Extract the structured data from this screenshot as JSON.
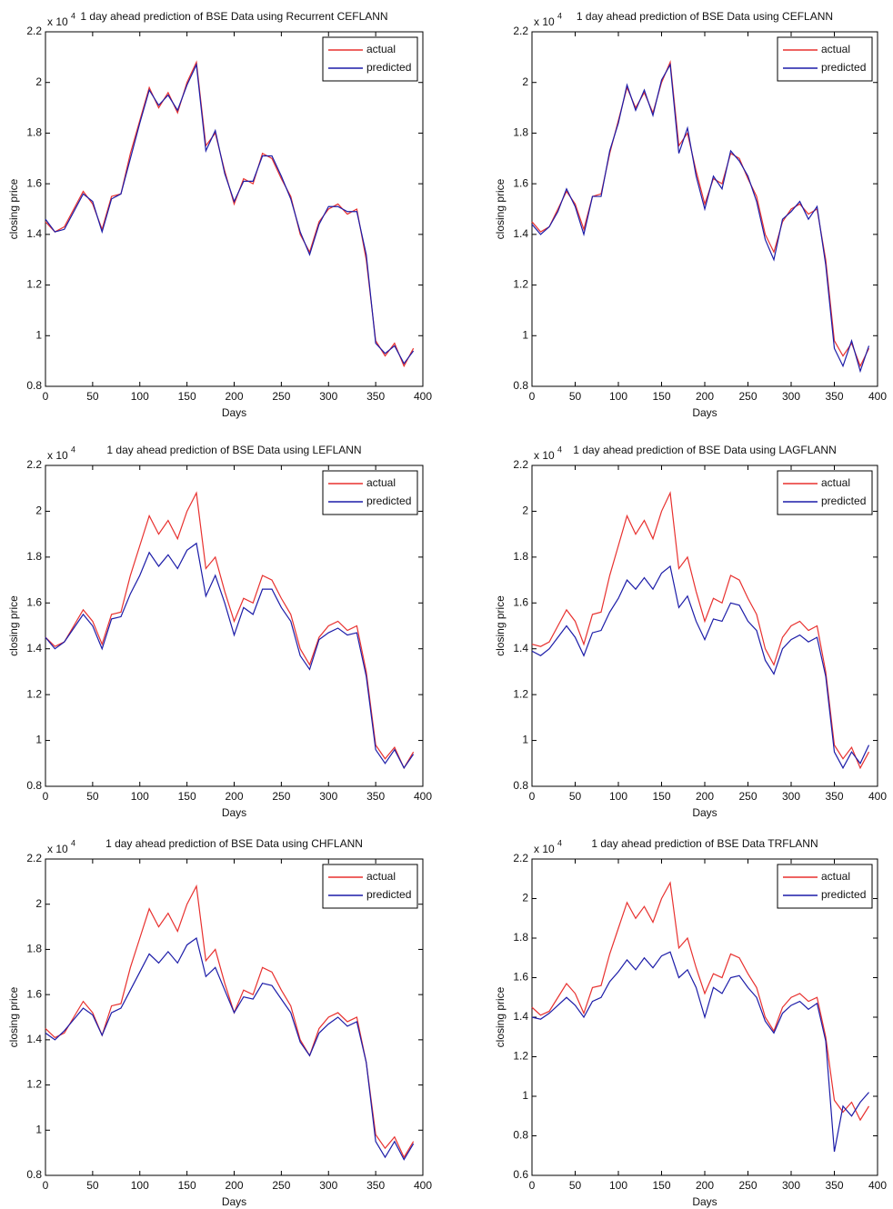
{
  "chart_data": [
    {
      "type": "line",
      "title": "1 day ahead prediction of BSE  Data using  Recurrent CEFLANN",
      "x_label": "Days",
      "y_label": "closing price",
      "y_multiplier": "x 10",
      "y_multiplier_exponent": "4",
      "legend": "northeast",
      "x": [
        0,
        10,
        20,
        30,
        40,
        50,
        60,
        70,
        80,
        90,
        100,
        110,
        120,
        130,
        140,
        150,
        160,
        170,
        180,
        190,
        200,
        210,
        220,
        230,
        240,
        250,
        260,
        270,
        280,
        290,
        300,
        310,
        320,
        330,
        340,
        350,
        360,
        370,
        380,
        390
      ],
      "xlim": [
        0,
        400
      ],
      "xticks": [
        0,
        50,
        100,
        150,
        200,
        250,
        300,
        350,
        400
      ],
      "ylim": [
        0.8,
        2.2
      ],
      "yticks": [
        0.8,
        1,
        1.2,
        1.4,
        1.6,
        1.8,
        2,
        2.2
      ],
      "series": [
        {
          "name": "actual",
          "color": "#e8312f",
          "values": [
            1.45,
            1.41,
            1.43,
            1.5,
            1.57,
            1.52,
            1.42,
            1.55,
            1.56,
            1.72,
            1.85,
            1.98,
            1.9,
            1.96,
            1.88,
            2.0,
            2.08,
            1.75,
            1.8,
            1.65,
            1.52,
            1.62,
            1.6,
            1.72,
            1.7,
            1.62,
            1.55,
            1.4,
            1.33,
            1.45,
            1.5,
            1.52,
            1.48,
            1.5,
            1.3,
            0.98,
            0.92,
            0.97,
            0.88,
            0.95
          ]
        },
        {
          "name": "predicted",
          "color": "#1c1ca8",
          "values": [
            1.46,
            1.41,
            1.42,
            1.49,
            1.56,
            1.53,
            1.41,
            1.54,
            1.56,
            1.7,
            1.84,
            1.97,
            1.91,
            1.95,
            1.89,
            1.99,
            2.07,
            1.73,
            1.81,
            1.64,
            1.53,
            1.61,
            1.61,
            1.71,
            1.71,
            1.63,
            1.54,
            1.41,
            1.32,
            1.44,
            1.51,
            1.51,
            1.49,
            1.49,
            1.32,
            0.97,
            0.93,
            0.96,
            0.89,
            0.94
          ]
        }
      ]
    },
    {
      "type": "line",
      "title": "1 day ahead prediction of BSE  Data using  CEFLANN",
      "x_label": "Days",
      "y_label": "closing price",
      "y_multiplier": "x 10",
      "y_multiplier_exponent": "4",
      "legend": "northeast",
      "x": [
        0,
        10,
        20,
        30,
        40,
        50,
        60,
        70,
        80,
        90,
        100,
        110,
        120,
        130,
        140,
        150,
        160,
        170,
        180,
        190,
        200,
        210,
        220,
        230,
        240,
        250,
        260,
        270,
        280,
        290,
        300,
        310,
        320,
        330,
        340,
        350,
        360,
        370,
        380,
        390
      ],
      "xlim": [
        0,
        400
      ],
      "xticks": [
        0,
        50,
        100,
        150,
        200,
        250,
        300,
        350,
        400
      ],
      "ylim": [
        0.8,
        2.2
      ],
      "yticks": [
        0.8,
        1,
        1.2,
        1.4,
        1.6,
        1.8,
        2,
        2.2
      ],
      "series": [
        {
          "name": "actual",
          "color": "#e8312f",
          "values": [
            1.45,
            1.41,
            1.43,
            1.5,
            1.57,
            1.52,
            1.42,
            1.55,
            1.56,
            1.72,
            1.85,
            1.98,
            1.9,
            1.96,
            1.88,
            2.0,
            2.08,
            1.75,
            1.8,
            1.65,
            1.52,
            1.62,
            1.6,
            1.72,
            1.7,
            1.62,
            1.55,
            1.4,
            1.33,
            1.45,
            1.5,
            1.52,
            1.48,
            1.5,
            1.3,
            0.98,
            0.92,
            0.97,
            0.88,
            0.95
          ]
        },
        {
          "name": "predicted",
          "color": "#1c1ca8",
          "values": [
            1.44,
            1.4,
            1.43,
            1.49,
            1.58,
            1.51,
            1.4,
            1.55,
            1.55,
            1.73,
            1.84,
            1.99,
            1.89,
            1.97,
            1.87,
            2.01,
            2.07,
            1.72,
            1.82,
            1.63,
            1.5,
            1.63,
            1.58,
            1.73,
            1.69,
            1.63,
            1.53,
            1.38,
            1.3,
            1.46,
            1.49,
            1.53,
            1.46,
            1.51,
            1.28,
            0.95,
            0.88,
            0.98,
            0.86,
            0.96
          ]
        }
      ]
    },
    {
      "type": "line",
      "title": "1 day ahead prediction of BSE  Data using  LEFLANN",
      "x_label": "Days",
      "y_label": "closing price",
      "y_multiplier": "x 10",
      "y_multiplier_exponent": "4",
      "legend": "northeast",
      "x": [
        0,
        10,
        20,
        30,
        40,
        50,
        60,
        70,
        80,
        90,
        100,
        110,
        120,
        130,
        140,
        150,
        160,
        170,
        180,
        190,
        200,
        210,
        220,
        230,
        240,
        250,
        260,
        270,
        280,
        290,
        300,
        310,
        320,
        330,
        340,
        350,
        360,
        370,
        380,
        390
      ],
      "xlim": [
        0,
        400
      ],
      "xticks": [
        0,
        50,
        100,
        150,
        200,
        250,
        300,
        350,
        400
      ],
      "ylim": [
        0.8,
        2.2
      ],
      "yticks": [
        0.8,
        1,
        1.2,
        1.4,
        1.6,
        1.8,
        2,
        2.2
      ],
      "series": [
        {
          "name": "actual",
          "color": "#e8312f",
          "values": [
            1.45,
            1.41,
            1.43,
            1.5,
            1.57,
            1.52,
            1.42,
            1.55,
            1.56,
            1.72,
            1.85,
            1.98,
            1.9,
            1.96,
            1.88,
            2.0,
            2.08,
            1.75,
            1.8,
            1.65,
            1.52,
            1.62,
            1.6,
            1.72,
            1.7,
            1.62,
            1.55,
            1.4,
            1.33,
            1.45,
            1.5,
            1.52,
            1.48,
            1.5,
            1.3,
            0.98,
            0.92,
            0.97,
            0.88,
            0.95
          ]
        },
        {
          "name": "predicted",
          "color": "#1c1ca8",
          "values": [
            1.45,
            1.4,
            1.43,
            1.49,
            1.55,
            1.5,
            1.4,
            1.53,
            1.54,
            1.64,
            1.72,
            1.82,
            1.76,
            1.81,
            1.75,
            1.83,
            1.86,
            1.63,
            1.72,
            1.6,
            1.46,
            1.58,
            1.55,
            1.66,
            1.66,
            1.58,
            1.52,
            1.37,
            1.31,
            1.44,
            1.47,
            1.49,
            1.46,
            1.47,
            1.28,
            0.96,
            0.9,
            0.96,
            0.88,
            0.94
          ]
        }
      ]
    },
    {
      "type": "line",
      "title": "1 day ahead prediction of BSE  Data using  LAGFLANN",
      "x_label": "Days",
      "y_label": "closing price",
      "y_multiplier": "x 10",
      "y_multiplier_exponent": "4",
      "legend": "northeast",
      "x": [
        0,
        10,
        20,
        30,
        40,
        50,
        60,
        70,
        80,
        90,
        100,
        110,
        120,
        130,
        140,
        150,
        160,
        170,
        180,
        190,
        200,
        210,
        220,
        230,
        240,
        250,
        260,
        270,
        280,
        290,
        300,
        310,
        320,
        330,
        340,
        350,
        360,
        370,
        380,
        390
      ],
      "xlim": [
        0,
        400
      ],
      "xticks": [
        0,
        50,
        100,
        150,
        200,
        250,
        300,
        350,
        400
      ],
      "ylim": [
        0.8,
        2.2
      ],
      "yticks": [
        0.8,
        1,
        1.2,
        1.4,
        1.6,
        1.8,
        2,
        2.2
      ],
      "series": [
        {
          "name": "actual",
          "color": "#e8312f",
          "values": [
            1.42,
            1.41,
            1.43,
            1.5,
            1.57,
            1.52,
            1.42,
            1.55,
            1.56,
            1.72,
            1.85,
            1.98,
            1.9,
            1.96,
            1.88,
            2.0,
            2.08,
            1.75,
            1.8,
            1.65,
            1.52,
            1.62,
            1.6,
            1.72,
            1.7,
            1.62,
            1.55,
            1.4,
            1.33,
            1.45,
            1.5,
            1.52,
            1.48,
            1.5,
            1.3,
            0.98,
            0.92,
            0.97,
            0.88,
            0.95
          ]
        },
        {
          "name": "predicted",
          "color": "#1c1ca8",
          "values": [
            1.39,
            1.37,
            1.4,
            1.45,
            1.5,
            1.45,
            1.37,
            1.47,
            1.48,
            1.56,
            1.62,
            1.7,
            1.66,
            1.71,
            1.66,
            1.73,
            1.76,
            1.58,
            1.63,
            1.52,
            1.44,
            1.53,
            1.52,
            1.6,
            1.59,
            1.52,
            1.48,
            1.35,
            1.29,
            1.4,
            1.44,
            1.46,
            1.43,
            1.45,
            1.28,
            0.95,
            0.88,
            0.95,
            0.9,
            0.98
          ]
        }
      ]
    },
    {
      "type": "line",
      "title": "1 day ahead prediction of BSE  Data using  CHFLANN",
      "x_label": "Days",
      "y_label": "closing price",
      "y_multiplier": "x 10",
      "y_multiplier_exponent": "4",
      "legend": "northeast",
      "x": [
        0,
        10,
        20,
        30,
        40,
        50,
        60,
        70,
        80,
        90,
        100,
        110,
        120,
        130,
        140,
        150,
        160,
        170,
        180,
        190,
        200,
        210,
        220,
        230,
        240,
        250,
        260,
        270,
        280,
        290,
        300,
        310,
        320,
        330,
        340,
        350,
        360,
        370,
        380,
        390
      ],
      "xlim": [
        0,
        400
      ],
      "xticks": [
        0,
        50,
        100,
        150,
        200,
        250,
        300,
        350,
        400
      ],
      "ylim": [
        0.8,
        2.2
      ],
      "yticks": [
        0.8,
        1,
        1.2,
        1.4,
        1.6,
        1.8,
        2,
        2.2
      ],
      "series": [
        {
          "name": "actual",
          "color": "#e8312f",
          "values": [
            1.45,
            1.41,
            1.43,
            1.5,
            1.57,
            1.52,
            1.42,
            1.55,
            1.56,
            1.72,
            1.85,
            1.98,
            1.9,
            1.96,
            1.88,
            2.0,
            2.08,
            1.75,
            1.8,
            1.65,
            1.52,
            1.62,
            1.6,
            1.72,
            1.7,
            1.62,
            1.55,
            1.4,
            1.33,
            1.45,
            1.5,
            1.52,
            1.48,
            1.5,
            1.3,
            0.98,
            0.92,
            0.97,
            0.88,
            0.95
          ]
        },
        {
          "name": "predicted",
          "color": "#1c1ca8",
          "values": [
            1.43,
            1.4,
            1.44,
            1.49,
            1.54,
            1.51,
            1.42,
            1.52,
            1.54,
            1.62,
            1.7,
            1.78,
            1.74,
            1.79,
            1.74,
            1.82,
            1.85,
            1.68,
            1.72,
            1.62,
            1.52,
            1.59,
            1.58,
            1.65,
            1.64,
            1.58,
            1.52,
            1.39,
            1.33,
            1.43,
            1.47,
            1.5,
            1.46,
            1.48,
            1.3,
            0.95,
            0.88,
            0.95,
            0.87,
            0.94
          ]
        }
      ]
    },
    {
      "type": "line",
      "title": "1 day ahead prediction of  BSE  Data  TRFLANN",
      "x_label": "Days",
      "y_label": "closing price",
      "y_multiplier": "x 10",
      "y_multiplier_exponent": "4",
      "legend": "northeast",
      "x": [
        0,
        10,
        20,
        30,
        40,
        50,
        60,
        70,
        80,
        90,
        100,
        110,
        120,
        130,
        140,
        150,
        160,
        170,
        180,
        190,
        200,
        210,
        220,
        230,
        240,
        250,
        260,
        270,
        280,
        290,
        300,
        310,
        320,
        330,
        340,
        350,
        360,
        370,
        380,
        390
      ],
      "xlim": [
        0,
        400
      ],
      "xticks": [
        0,
        50,
        100,
        150,
        200,
        250,
        300,
        350,
        400
      ],
      "ylim": [
        0.6,
        2.2
      ],
      "yticks": [
        0.6,
        0.8,
        1,
        1.2,
        1.4,
        1.6,
        1.8,
        2,
        2.2
      ],
      "series": [
        {
          "name": "actual",
          "color": "#e8312f",
          "values": [
            1.45,
            1.41,
            1.43,
            1.5,
            1.57,
            1.52,
            1.42,
            1.55,
            1.56,
            1.72,
            1.85,
            1.98,
            1.9,
            1.96,
            1.88,
            2.0,
            2.08,
            1.75,
            1.8,
            1.65,
            1.52,
            1.62,
            1.6,
            1.72,
            1.7,
            1.62,
            1.55,
            1.4,
            1.33,
            1.45,
            1.5,
            1.52,
            1.48,
            1.5,
            1.3,
            0.98,
            0.92,
            0.97,
            0.88,
            0.95
          ]
        },
        {
          "name": "predicted",
          "color": "#1c1ca8",
          "values": [
            1.4,
            1.39,
            1.42,
            1.46,
            1.5,
            1.46,
            1.4,
            1.48,
            1.5,
            1.58,
            1.63,
            1.69,
            1.64,
            1.7,
            1.65,
            1.71,
            1.73,
            1.6,
            1.64,
            1.55,
            1.4,
            1.55,
            1.52,
            1.6,
            1.61,
            1.55,
            1.5,
            1.38,
            1.32,
            1.42,
            1.46,
            1.48,
            1.44,
            1.47,
            1.28,
            0.72,
            0.95,
            0.9,
            0.97,
            1.02
          ]
        }
      ]
    }
  ]
}
